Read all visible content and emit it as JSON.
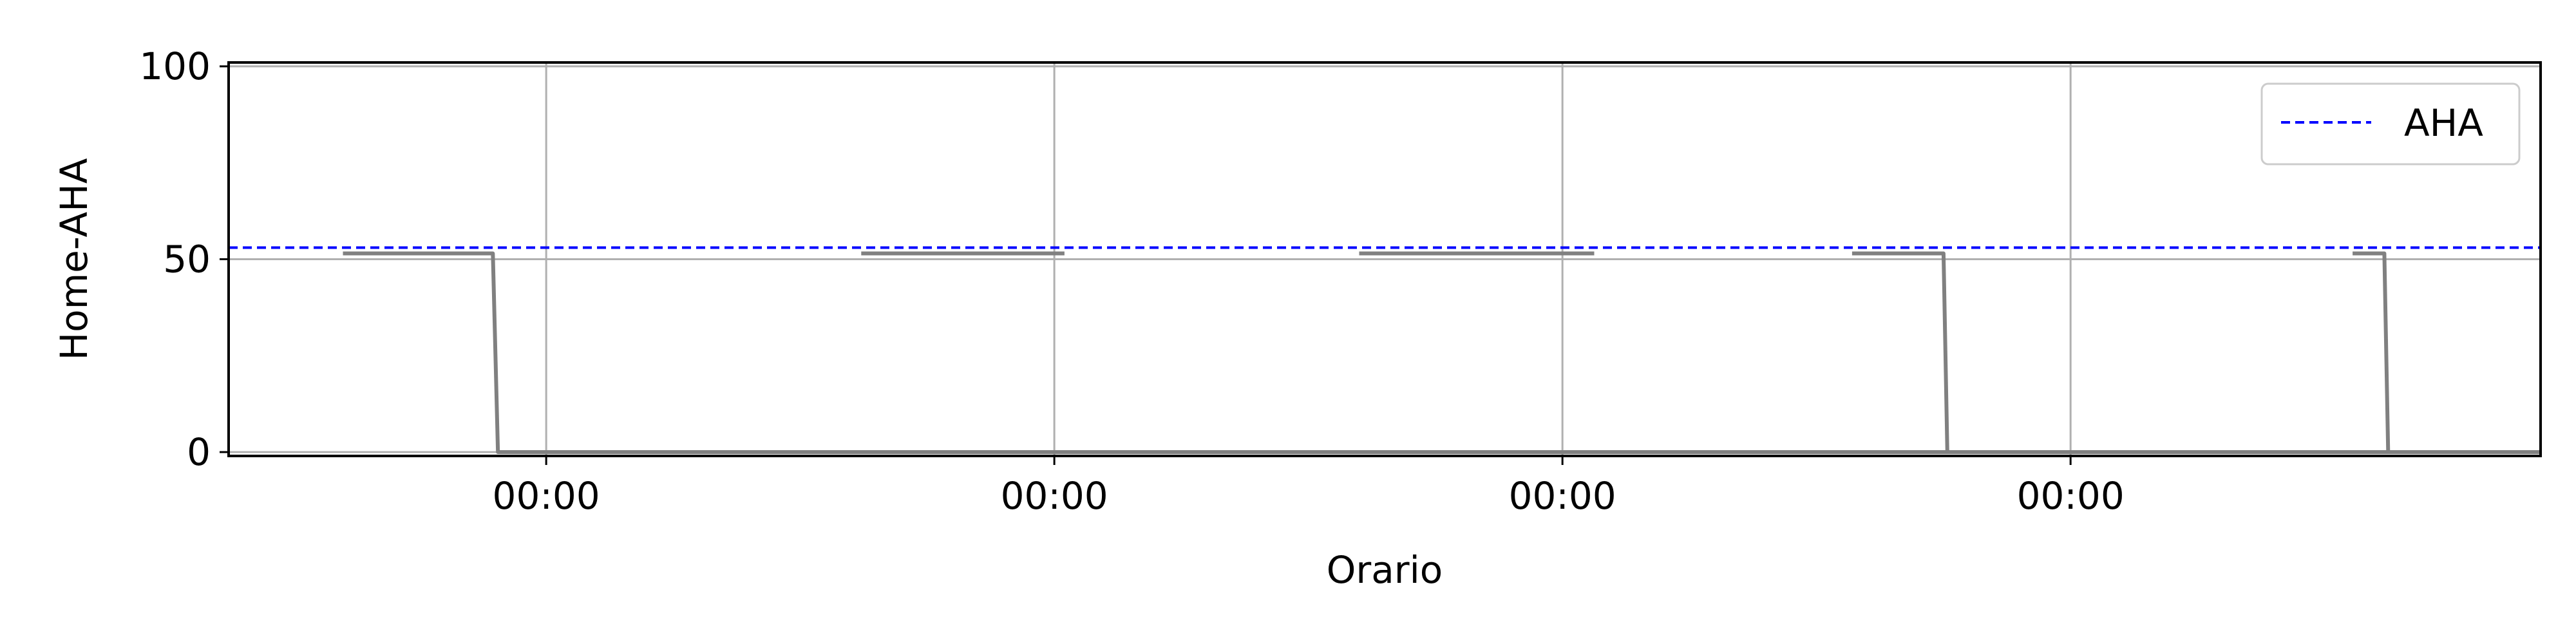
{
  "chart_data": {
    "type": "line",
    "title": "",
    "xlabel": "Orario",
    "ylabel": "Home-AHA",
    "x_range": [
      0,
      18.2
    ],
    "ylim": [
      -1,
      101
    ],
    "x_ticks": [
      {
        "x": 2.5,
        "label": "00:00"
      },
      {
        "x": 6.5,
        "label": "00:00"
      },
      {
        "x": 10.5,
        "label": "00:00"
      },
      {
        "x": 14.5,
        "label": "00:00"
      }
    ],
    "y_ticks": [
      {
        "y": 0,
        "label": "0"
      },
      {
        "y": 50,
        "label": "50"
      },
      {
        "y": 100,
        "label": "100"
      }
    ],
    "grid": true,
    "legend": {
      "position": "top-right"
    },
    "series": [
      {
        "name": "",
        "color": "#808080",
        "style": "solid",
        "points": [
          [
            0.9,
            51.5
          ],
          [
            2.08,
            51.5
          ],
          [
            2.12,
            0
          ],
          [
            2.45,
            0
          ],
          [
            6.45,
            0
          ],
          [
            10.45,
            0
          ],
          [
            13.8,
            0
          ],
          [
            13.87,
            51.5
          ],
          [
            13.9,
            51.5
          ],
          [
            13.9,
            51.5
          ],
          [
            13.87,
            51.5
          ],
          [
            13.87,
            0
          ],
          [
            17.3,
            0
          ],
          [
            17.32,
            51.5
          ],
          [
            17.1,
            51.5
          ]
        ],
        "segments": [
          [
            [
              0.9,
              51.5
            ],
            [
              2.08,
              51.5
            ],
            [
              2.12,
              0
            ],
            [
              18.2,
              0
            ]
          ],
          [
            [
              4.98,
              51.5
            ],
            [
              6.58,
              51.5
            ]
          ],
          [
            [
              8.9,
              51.5
            ],
            [
              10.75,
              51.5
            ]
          ],
          [
            [
              12.78,
              51.5
            ],
            [
              13.5,
              51.5
            ],
            [
              13.53,
              0
            ]
          ],
          [
            [
              16.72,
              51.5
            ],
            [
              16.97,
              51.5
            ],
            [
              17.0,
              0
            ]
          ]
        ]
      },
      {
        "name": "AHA",
        "color": "#0000ff",
        "style": "dashed",
        "y": 53
      }
    ]
  }
}
